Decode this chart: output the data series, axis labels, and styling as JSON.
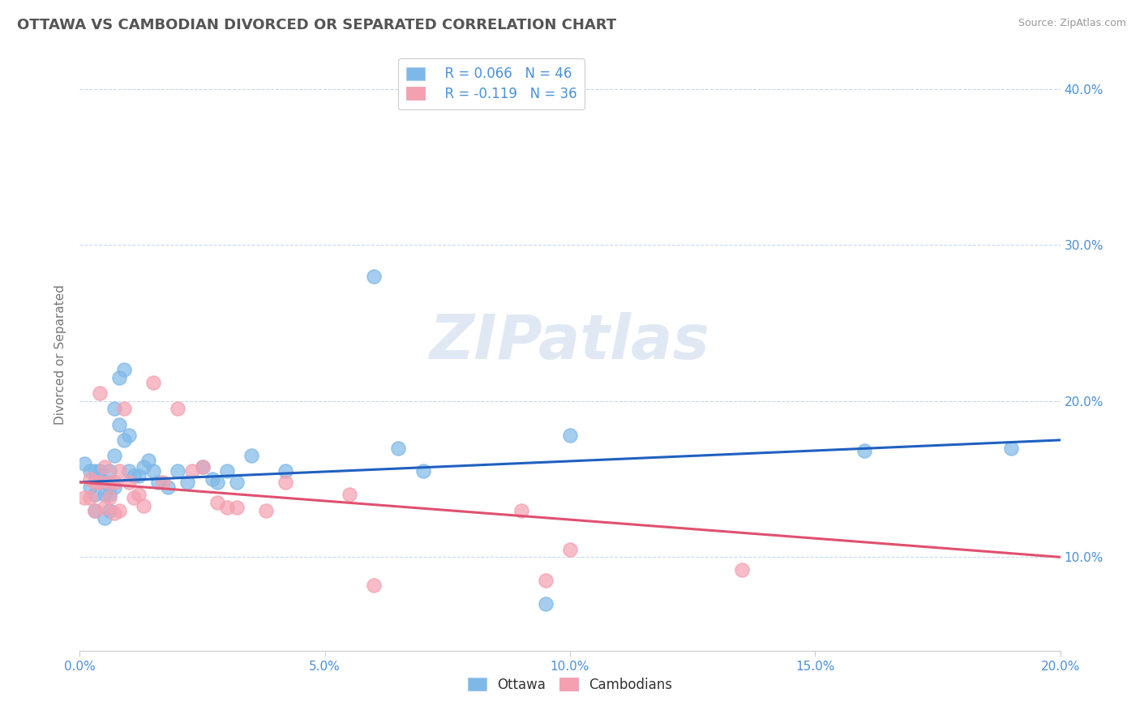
{
  "title": "OTTAWA VS CAMBODIAN DIVORCED OR SEPARATED CORRELATION CHART",
  "source": "Source: ZipAtlas.com",
  "xlim": [
    0.0,
    0.2
  ],
  "ylim": [
    0.04,
    0.42
  ],
  "ottawa_color": "#7eb8e8",
  "cambodian_color": "#f4a0b0",
  "ottawa_line_color": "#2060c0",
  "cambodian_line_color": "#e05070",
  "legend_R1": "R = 0.066",
  "legend_N1": "N = 46",
  "legend_R2": "R = -0.119",
  "legend_N2": "N = 36",
  "watermark": "ZIPatlas",
  "ylabel": "Divorced or Separated",
  "ottawa_x": [
    0.001,
    0.002,
    0.002,
    0.003,
    0.003,
    0.003,
    0.004,
    0.004,
    0.005,
    0.005,
    0.005,
    0.006,
    0.006,
    0.006,
    0.007,
    0.007,
    0.007,
    0.008,
    0.008,
    0.009,
    0.009,
    0.01,
    0.01,
    0.011,
    0.012,
    0.013,
    0.014,
    0.015,
    0.016,
    0.018,
    0.02,
    0.022,
    0.025,
    0.027,
    0.028,
    0.03,
    0.032,
    0.035,
    0.042,
    0.06,
    0.065,
    0.07,
    0.095,
    0.1,
    0.16,
    0.19
  ],
  "ottawa_y": [
    0.16,
    0.155,
    0.145,
    0.155,
    0.14,
    0.13,
    0.15,
    0.155,
    0.148,
    0.14,
    0.125,
    0.155,
    0.14,
    0.13,
    0.165,
    0.145,
    0.195,
    0.185,
    0.215,
    0.175,
    0.22,
    0.178,
    0.155,
    0.152,
    0.152,
    0.158,
    0.162,
    0.155,
    0.148,
    0.145,
    0.155,
    0.148,
    0.158,
    0.15,
    0.148,
    0.155,
    0.148,
    0.165,
    0.155,
    0.28,
    0.17,
    0.155,
    0.07,
    0.178,
    0.168,
    0.17
  ],
  "cambodian_x": [
    0.001,
    0.002,
    0.002,
    0.003,
    0.003,
    0.004,
    0.004,
    0.005,
    0.005,
    0.006,
    0.006,
    0.007,
    0.007,
    0.008,
    0.008,
    0.009,
    0.01,
    0.011,
    0.012,
    0.013,
    0.015,
    0.017,
    0.02,
    0.023,
    0.025,
    0.028,
    0.03,
    0.032,
    0.038,
    0.042,
    0.055,
    0.06,
    0.09,
    0.095,
    0.1,
    0.135
  ],
  "cambodian_y": [
    0.138,
    0.15,
    0.138,
    0.148,
    0.13,
    0.205,
    0.148,
    0.158,
    0.132,
    0.148,
    0.138,
    0.128,
    0.148,
    0.155,
    0.13,
    0.195,
    0.148,
    0.138,
    0.14,
    0.133,
    0.212,
    0.148,
    0.195,
    0.155,
    0.158,
    0.135,
    0.132,
    0.132,
    0.13,
    0.148,
    0.14,
    0.082,
    0.13,
    0.085,
    0.105,
    0.092
  ],
  "ottawa_trend_x0": 0.0,
  "ottawa_trend_y0": 0.148,
  "ottawa_trend_x1": 0.2,
  "ottawa_trend_y1": 0.175,
  "cambodian_trend_x0": 0.0,
  "cambodian_trend_y0": 0.148,
  "cambodian_trend_x1": 0.2,
  "cambodian_trend_y1": 0.1
}
